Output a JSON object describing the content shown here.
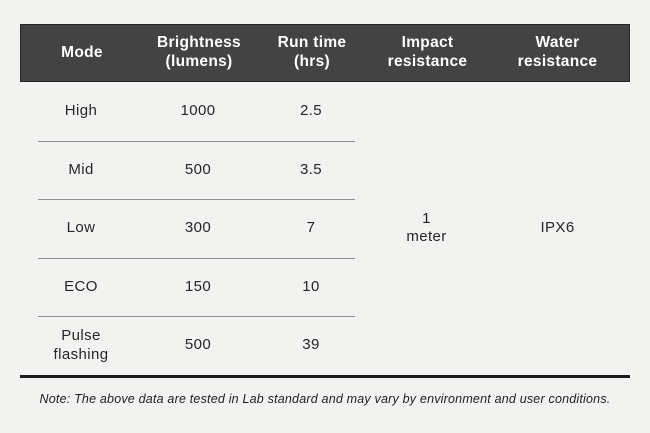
{
  "colors": {
    "page_bg": "#f2f2f1",
    "header_bg": "#434343",
    "header_border": "#262626",
    "header_text": "#ffffff",
    "body_text": "#262626",
    "row_divider": "#8f8f8f",
    "bottom_rule": "#1c1c1c"
  },
  "table": {
    "columns": [
      "Mode",
      "Brightness\n(lumens)",
      "Run time\n(hrs)",
      "Impact\nresistance",
      "Water\nresistance"
    ],
    "rows": [
      {
        "mode": "High",
        "brightness": "1000",
        "run_time": "2.5"
      },
      {
        "mode": "Mid",
        "brightness": "500",
        "run_time": "3.5"
      },
      {
        "mode": "Low",
        "brightness": "300",
        "run_time": "7"
      },
      {
        "mode": "ECO",
        "brightness": "150",
        "run_time": "10"
      },
      {
        "mode": "Pulse\nflashing",
        "brightness": "500",
        "run_time": "39"
      }
    ],
    "impact_resistance": "1\nmeter",
    "water_resistance": "IPX6"
  },
  "note": "Note: The above data are tested in Lab standard and may vary by environment and user conditions.",
  "chart_data": {
    "type": "table",
    "title": "",
    "columns": [
      "Mode",
      "Brightness (lumens)",
      "Run time (hrs)",
      "Impact resistance",
      "Water resistance"
    ],
    "rows": [
      [
        "High",
        1000,
        2.5,
        "1 meter",
        "IPX6"
      ],
      [
        "Mid",
        500,
        3.5,
        "1 meter",
        "IPX6"
      ],
      [
        "Low",
        300,
        7,
        "1 meter",
        "IPX6"
      ],
      [
        "ECO",
        150,
        10,
        "1 meter",
        "IPX6"
      ],
      [
        "Pulse flashing",
        500,
        39,
        "1 meter",
        "IPX6"
      ]
    ],
    "merged_cells": [
      {
        "column": "Impact resistance",
        "value": "1 meter",
        "spans_rows": [
          0,
          4
        ]
      },
      {
        "column": "Water resistance",
        "value": "IPX6",
        "spans_rows": [
          0,
          4
        ]
      }
    ],
    "footnote": "Note: The above data are tested in Lab standard and may vary by environment and user conditions."
  }
}
